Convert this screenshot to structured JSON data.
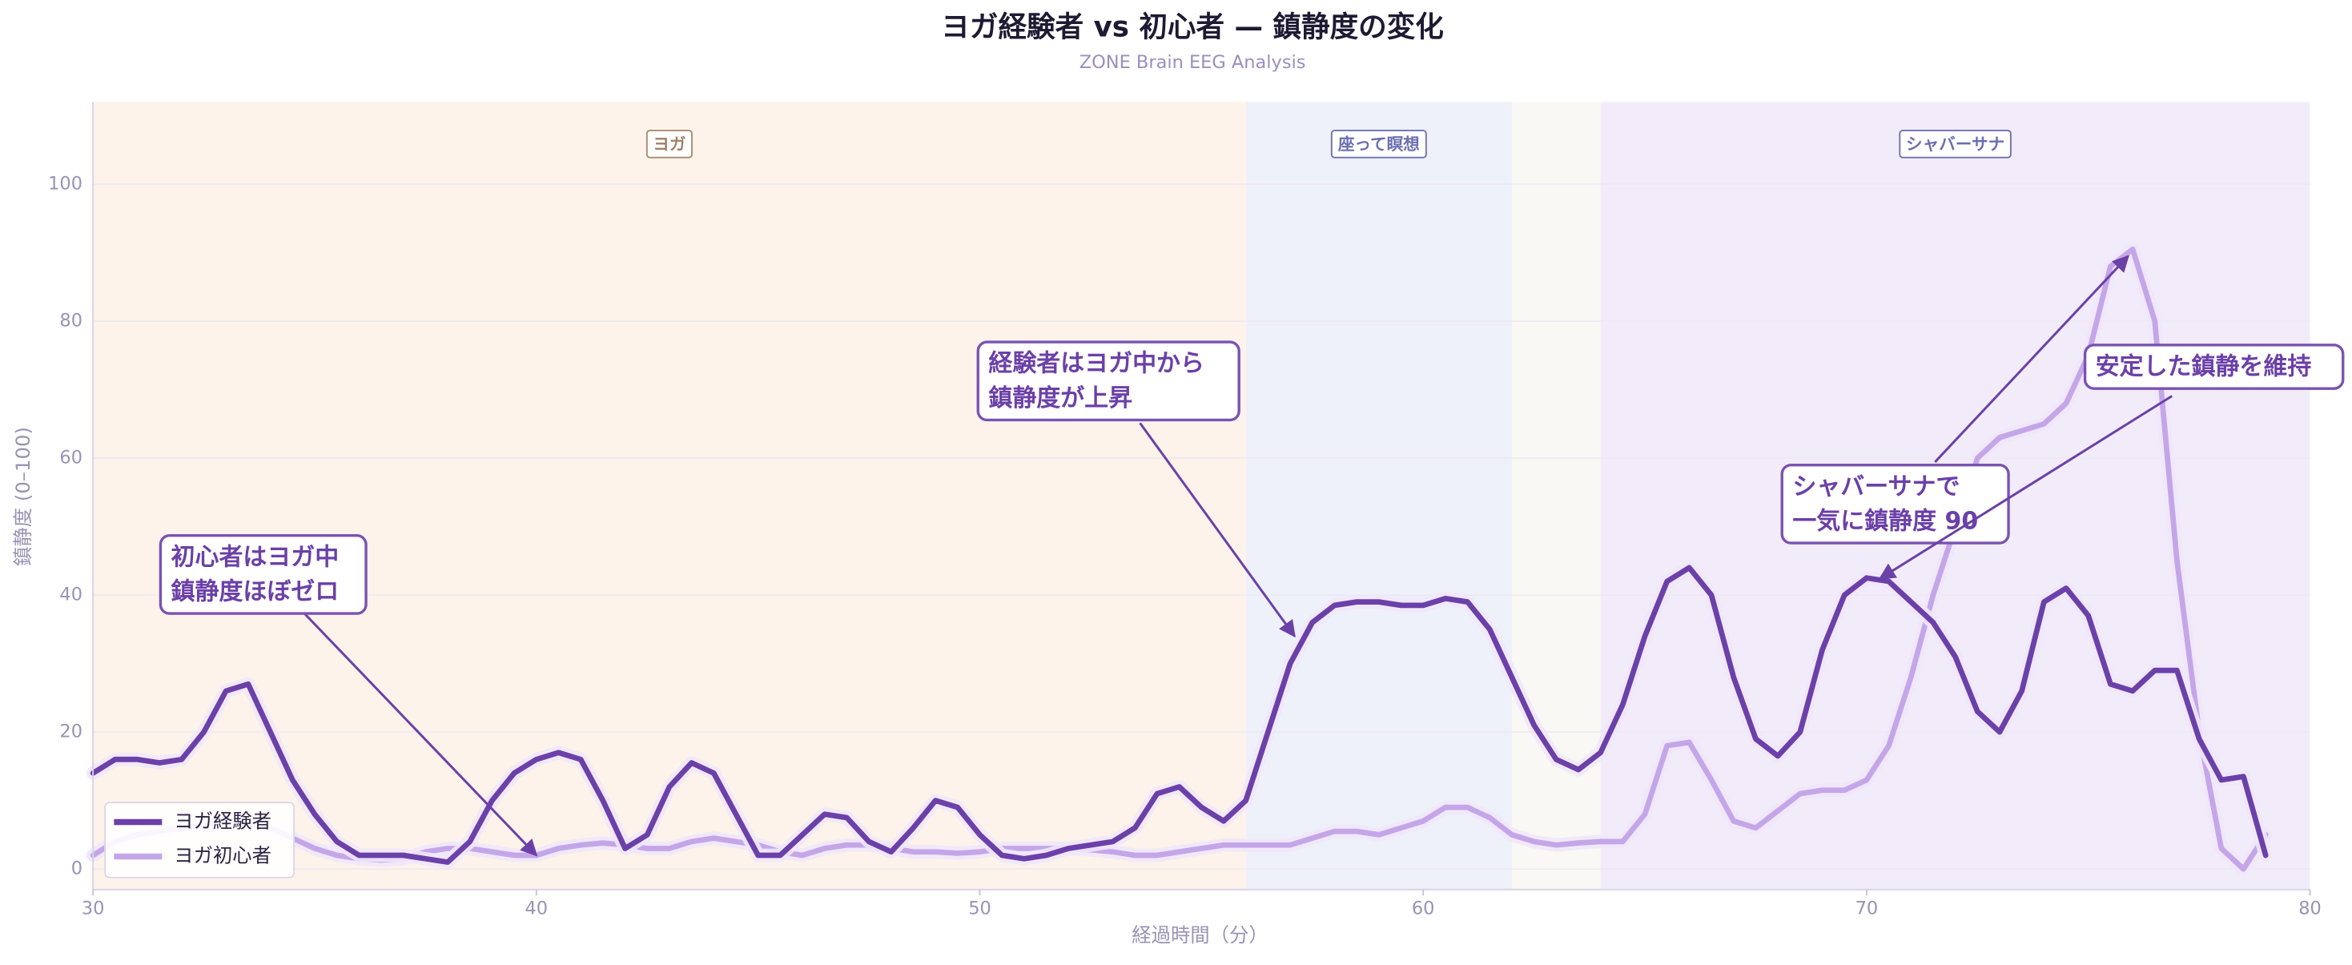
{
  "chart_data": {
    "type": "line",
    "title": "ヨガ経験者 vs 初心者 — 鎮静度の変化",
    "subtitle": "ZONE Brain EEG Analysis",
    "xlabel": "経過時間（分）",
    "ylabel": "鎮静度 (0–100)",
    "xlim": [
      30,
      80
    ],
    "ylim": [
      -3,
      112
    ],
    "xticks": [
      30,
      40,
      50,
      60,
      70,
      80
    ],
    "yticks": [
      0,
      20,
      40,
      60,
      80,
      100
    ],
    "grid": true,
    "legend": "lower left",
    "regions": [
      {
        "label": "ヨガ",
        "start": 30,
        "end": 56,
        "color": "#fdf3ea"
      },
      {
        "label": "座って瞑想",
        "start": 56,
        "end": 62,
        "color": "#eef0fa"
      },
      {
        "start": 62,
        "end": 64,
        "color": "#f9f8f5"
      },
      {
        "label": "シャバーサナ",
        "start": 64,
        "end": 80,
        "color": "#f2ecfa"
      }
    ],
    "x": [
      30,
      30.5,
      31,
      31.5,
      32,
      32.5,
      33,
      33.5,
      34,
      34.5,
      35,
      35.5,
      36,
      36.5,
      37,
      37.5,
      38,
      38.5,
      39,
      39.5,
      40,
      40.5,
      41,
      41.5,
      42,
      42.5,
      43,
      43.5,
      44,
      44.5,
      45,
      45.5,
      46,
      46.5,
      47,
      47.5,
      48,
      48.5,
      49,
      49.5,
      50,
      50.5,
      51,
      51.5,
      52,
      52.5,
      53,
      53.5,
      54,
      54.5,
      55,
      55.5,
      56,
      56.5,
      57,
      57.5,
      58,
      58.5,
      59,
      59.5,
      60,
      60.5,
      61,
      61.5,
      62,
      62.5,
      63,
      63.5,
      64,
      64.5,
      65,
      65.5,
      66,
      66.5,
      67,
      67.5,
      68,
      68.5,
      69,
      69.5,
      70,
      70.5,
      71,
      71.5,
      72,
      72.5,
      73,
      73.5,
      74,
      74.5,
      75,
      75.5,
      76,
      76.5,
      77,
      77.5,
      78,
      78.5,
      79
    ],
    "series": [
      {
        "name": "ヨガ経験者",
        "color": "#6b40a8",
        "values": [
          14,
          16,
          16,
          15.5,
          16,
          20,
          26,
          27,
          20,
          13,
          8,
          4,
          2,
          2,
          2,
          1.5,
          1,
          4,
          10,
          14,
          16,
          17,
          16,
          10,
          3,
          5,
          12,
          15.5,
          14,
          8,
          2,
          2,
          5,
          8,
          7.5,
          4,
          2.5,
          6,
          10,
          9,
          5,
          2,
          1.5,
          2,
          3,
          3.5,
          4,
          6,
          11,
          12,
          9,
          7,
          10,
          20,
          30,
          36,
          38.5,
          39,
          39,
          38.5,
          38.5,
          39.5,
          39,
          35,
          28,
          21,
          16,
          14.5,
          17,
          24,
          34,
          42,
          44,
          40,
          28,
          19,
          16.5,
          20,
          32,
          40,
          42.5,
          42,
          39,
          36,
          31,
          23,
          20,
          26,
          39,
          41,
          37,
          27,
          26,
          29,
          29,
          19,
          13,
          13.5,
          2
        ]
      },
      {
        "name": "ヨガ初心者",
        "color": "#c4a6e8",
        "values": [
          2,
          4,
          5,
          5.5,
          6,
          6.5,
          7,
          6.5,
          6,
          4.5,
          3,
          2,
          1.5,
          1.3,
          1.5,
          2.5,
          3,
          3,
          2.5,
          2,
          2,
          3,
          3.5,
          3.8,
          3.5,
          3,
          3,
          4,
          4.5,
          4,
          3.5,
          2.5,
          2,
          3,
          3.5,
          3.5,
          3,
          2.5,
          2.5,
          2.3,
          2.5,
          3,
          3,
          3,
          3,
          2.8,
          2.5,
          2,
          2,
          2.5,
          3,
          3.5,
          3.5,
          3.5,
          3.5,
          4.5,
          5.5,
          5.5,
          5,
          6,
          7,
          9,
          9,
          7.5,
          5,
          4,
          3.5,
          3.8,
          4,
          4,
          8,
          18,
          18.5,
          13,
          7,
          6,
          8.5,
          11,
          11.5,
          11.5,
          13,
          18,
          28,
          40,
          50,
          60,
          63,
          64,
          65,
          68,
          75,
          88,
          90.5,
          80,
          45,
          20,
          3,
          0,
          5
        ]
      }
    ],
    "annotations": [
      {
        "lines": [
          "初心者はヨガ中",
          "鎮静度ほぼゼロ"
        ],
        "xy": [
          40,
          2
        ]
      },
      {
        "lines": [
          "経験者はヨガ中から",
          "鎮静度が上昇"
        ],
        "xy": [
          57.1,
          34
        ]
      },
      {
        "lines": [
          "シャバーサナで",
          "一気に鎮静度 90"
        ],
        "xy": [
          75.9,
          89.5
        ]
      },
      {
        "lines": [
          "安定した鎮静を維持"
        ],
        "xy": [
          70.3,
          42.4
        ]
      }
    ]
  }
}
